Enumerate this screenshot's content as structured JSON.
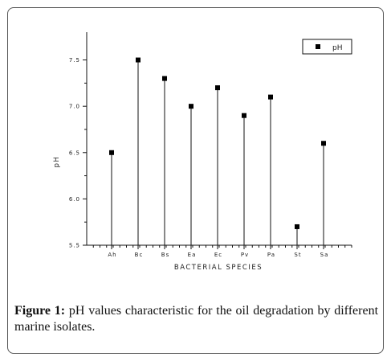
{
  "caption": {
    "label": "Figure 1:",
    "text": "pH values characteristic for the oil degradation by different marine isolates."
  },
  "chart_data": {
    "type": "scatter",
    "categories": [
      "Ah",
      "Bc",
      "Bs",
      "Ea",
      "Ec",
      "Pv",
      "Pa",
      "St",
      "Sa"
    ],
    "series": [
      {
        "name": "pH",
        "values": [
          6.5,
          7.5,
          7.3,
          7.0,
          7.2,
          6.9,
          7.1,
          5.7,
          6.6
        ]
      }
    ],
    "xlabel": "BACTERIAL SPECIES",
    "ylabel": "pH",
    "ylim": [
      5.5,
      7.8
    ],
    "yticks": [
      "5.5",
      "6.0",
      "6.5",
      "7.0",
      "7.5"
    ],
    "drop_lines": true,
    "legend": "top-right",
    "marker_color": "#000000"
  }
}
